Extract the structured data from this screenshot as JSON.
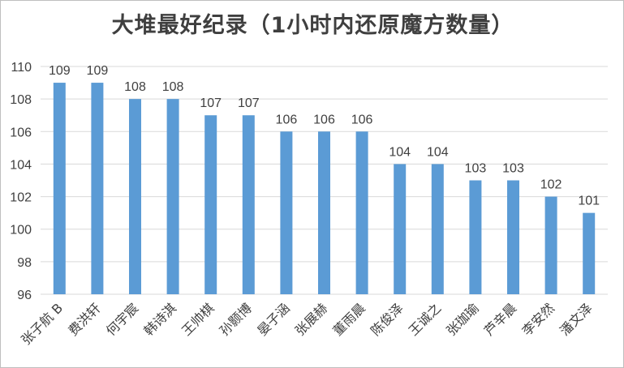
{
  "chart_data": {
    "type": "bar",
    "title": "大堆最好纪录（1小时内还原魔方数量）",
    "categories": [
      "张子航 B",
      "费洪轩",
      "何宇宸",
      "韩诗淇",
      "王帅棋",
      "孙颢博",
      "晏子涵",
      "张展赫",
      "董雨晨",
      "陈俊泽",
      "王诚之",
      "张珈瑜",
      "芦辛晨",
      "李安然",
      "潘文泽"
    ],
    "values": [
      109,
      109,
      108,
      108,
      107,
      107,
      106,
      106,
      106,
      104,
      104,
      103,
      103,
      102,
      101
    ],
    "ylim": [
      96,
      110
    ],
    "yticks": [
      96,
      98,
      100,
      102,
      104,
      106,
      108,
      110
    ],
    "xlabel": "",
    "ylabel": "",
    "grid": true,
    "legend": "none",
    "bar_color": "#5b9bd5",
    "grid_color": "#d9d9d9"
  }
}
